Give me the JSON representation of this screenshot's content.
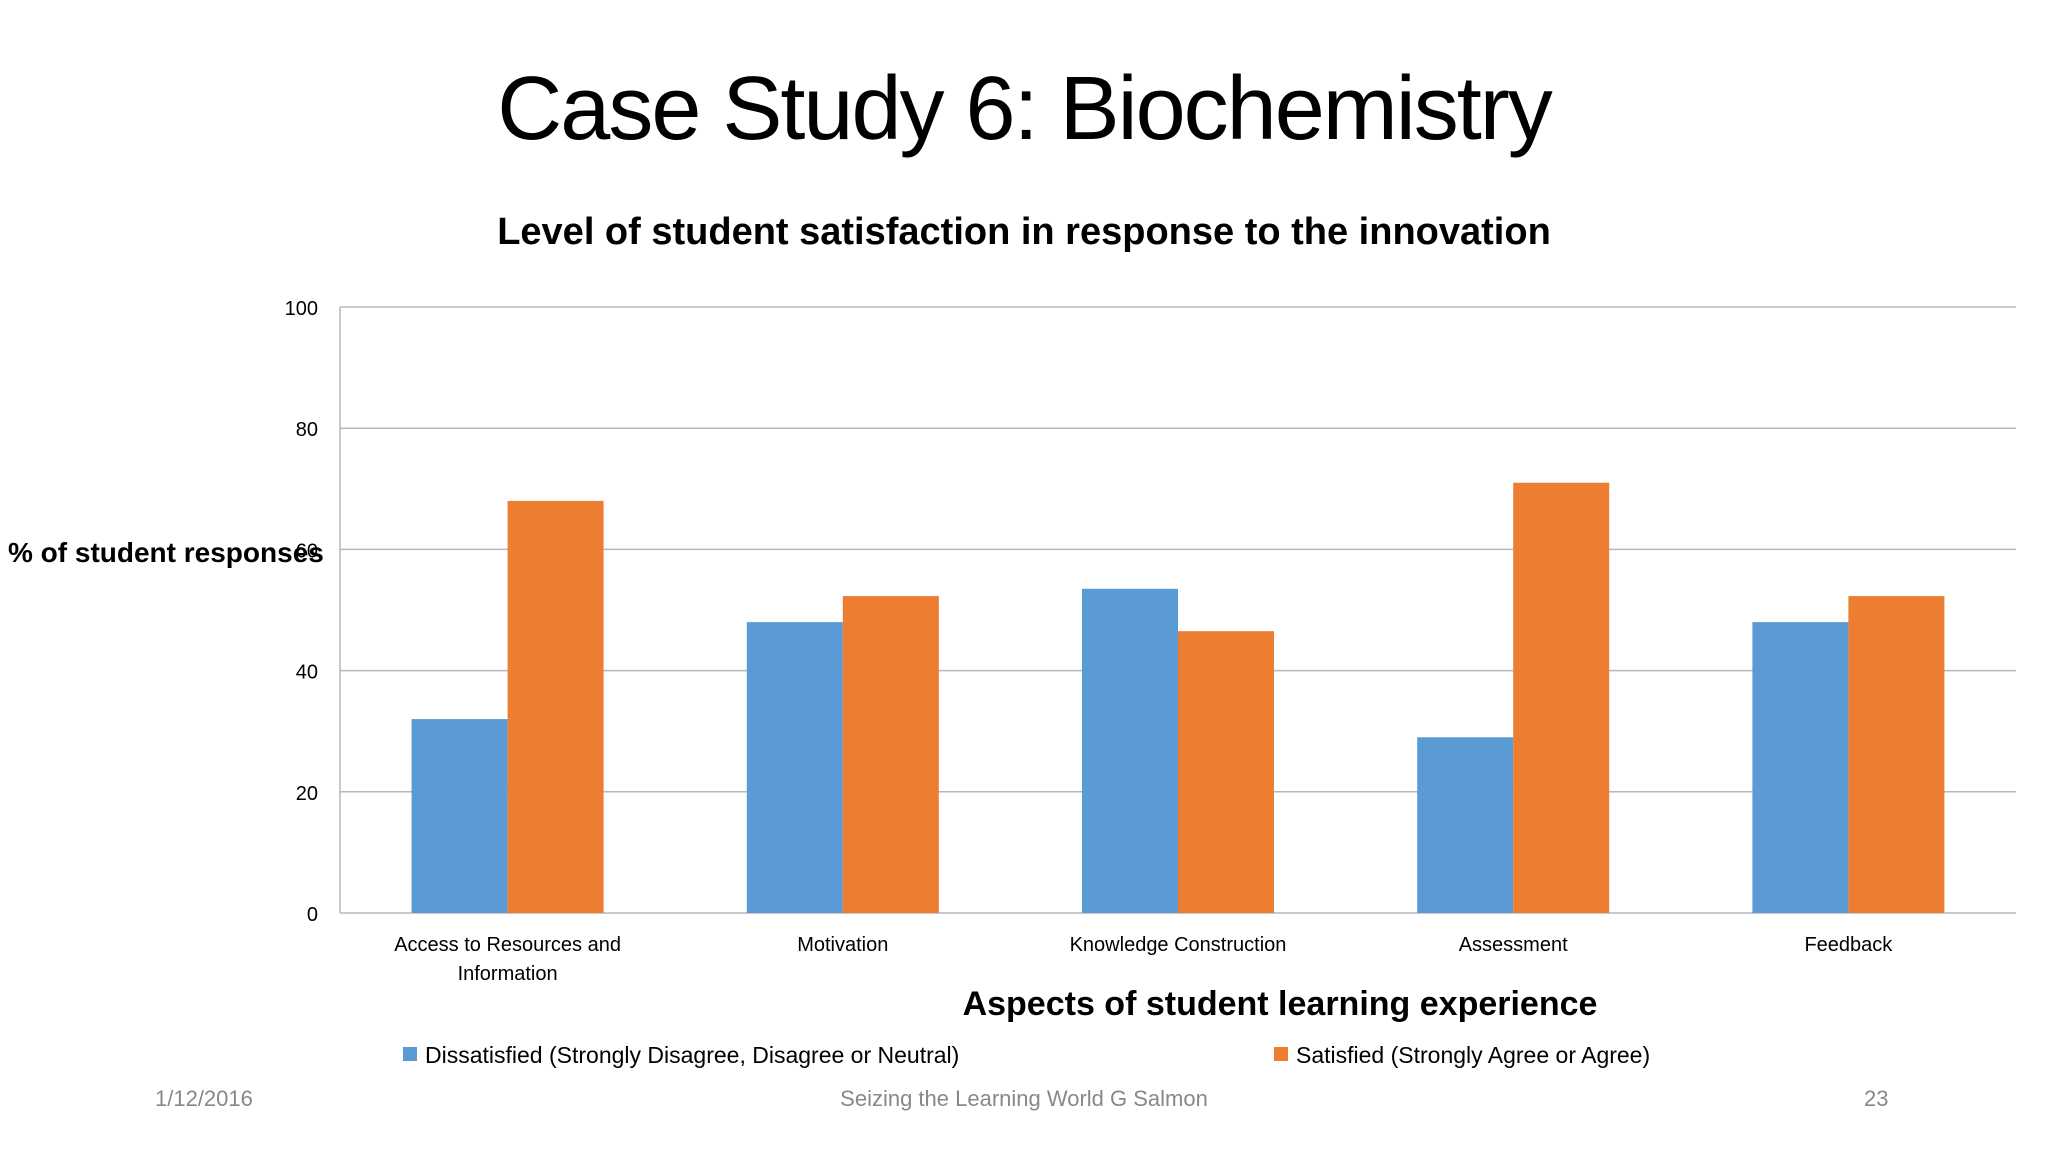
{
  "slide": {
    "title": "Case Study 6: Biochemistry"
  },
  "footer": {
    "date": "1/12/2016",
    "center": "Seizing the Learning World G Salmon",
    "page": "23"
  },
  "chart_data": {
    "type": "bar",
    "title": "Level of student satisfaction in response to the innovation",
    "xlabel": "Aspects of student learning experience",
    "ylabel": "% of student responses",
    "ylim": [
      0,
      100
    ],
    "yticks": [
      0,
      20,
      40,
      60,
      80,
      100
    ],
    "grid": true,
    "legend_position": "bottom",
    "categories": [
      [
        "Access to Resources and",
        "Information"
      ],
      [
        "Motivation"
      ],
      [
        "Knowledge Construction"
      ],
      [
        "Assessment"
      ],
      [
        "Feedback"
      ]
    ],
    "series": [
      {
        "name": "Dissatisfied (Strongly Disagree, Disagree or Neutral)",
        "color": "#5B9BD5",
        "values": [
          32,
          48,
          53.5,
          29,
          48
        ]
      },
      {
        "name": "Satisfied (Strongly Agree or Agree)",
        "color": "#ED7D31",
        "values": [
          68,
          52.3,
          46.5,
          71,
          52.3
        ]
      }
    ]
  }
}
